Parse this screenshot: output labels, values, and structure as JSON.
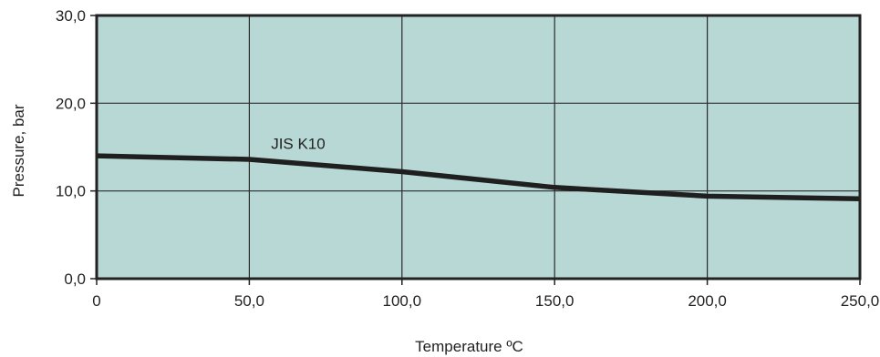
{
  "chart_data": {
    "type": "line",
    "title": "",
    "xlabel": "Temperature ºC",
    "ylabel": "Pressure, bar",
    "xlim": [
      0,
      250
    ],
    "ylim": [
      0,
      30
    ],
    "x_ticks": [
      0,
      50,
      100,
      150,
      200,
      250
    ],
    "x_tick_labels": [
      "0",
      "50,0",
      "100,0",
      "150,0",
      "200,0",
      "250,0"
    ],
    "y_ticks": [
      0,
      10,
      20,
      30
    ],
    "y_tick_labels": [
      "0,0",
      "10,0",
      "20,0",
      "30,0"
    ],
    "grid": true,
    "legend": "none",
    "series": [
      {
        "name": "JIS K10",
        "x": [
          0,
          50,
          100,
          150,
          200,
          250
        ],
        "y": [
          14.0,
          13.6,
          12.2,
          10.4,
          9.4,
          9.1
        ]
      }
    ],
    "colors": {
      "plot_background": "#b8d8d6",
      "line": "#1f1f1f",
      "grid": "#2a2a2a",
      "frame": "#222222"
    }
  }
}
